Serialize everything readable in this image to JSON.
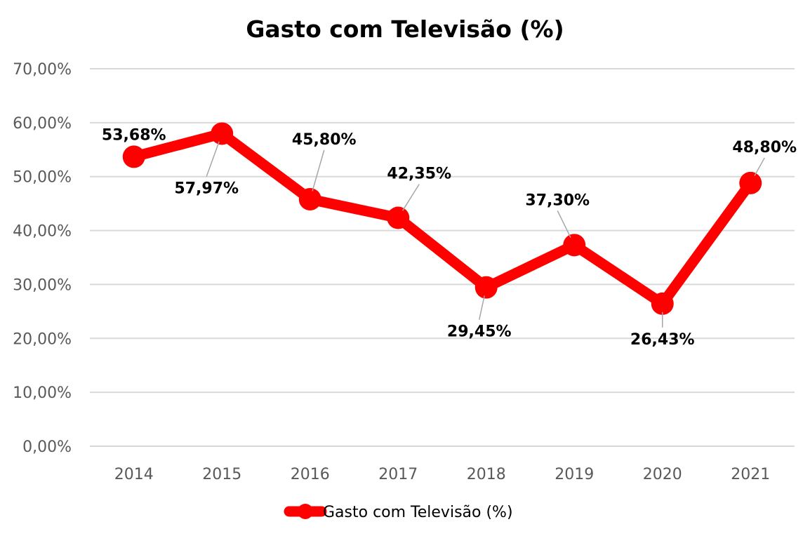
{
  "chart_data": {
    "type": "line",
    "title": "Gasto com Televisão (%)",
    "categories": [
      "2014",
      "2015",
      "2016",
      "2017",
      "2018",
      "2019",
      "2020",
      "2021"
    ],
    "series": [
      {
        "name": "Gasto com Televisão (%)",
        "values": [
          53.68,
          57.97,
          45.8,
          42.35,
          29.45,
          37.3,
          26.43,
          48.8
        ],
        "labels": [
          "53,68%",
          "57,97%",
          "45,80%",
          "42,35%",
          "29,45%",
          "37,30%",
          "26,43%",
          "48,80%"
        ]
      }
    ],
    "ylim": [
      0,
      70
    ],
    "yticks": [
      "0,00%",
      "10,00%",
      "20,00%",
      "30,00%",
      "40,00%",
      "50,00%",
      "60,00%",
      "70,00%"
    ],
    "grid": true,
    "legend": "bottom",
    "colors": {
      "series": "#ff0000",
      "grid": "#d9d9d9",
      "leader": "#a6a6a6"
    }
  }
}
